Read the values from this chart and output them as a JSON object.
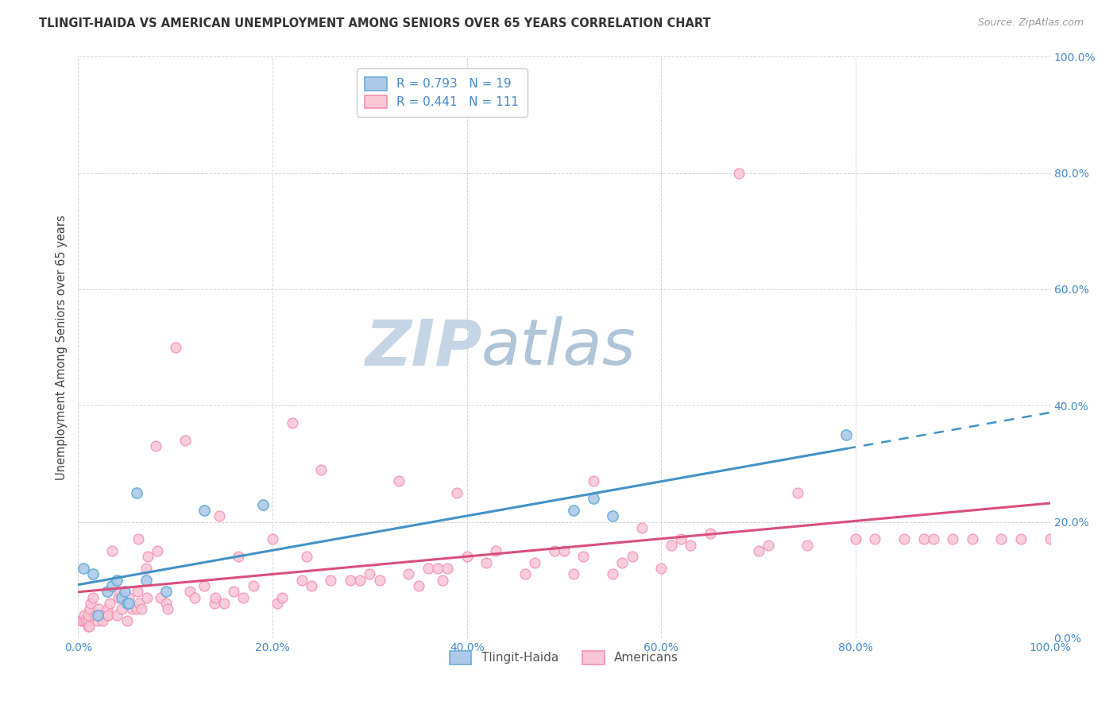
{
  "title": "TLINGIT-HAIDA VS AMERICAN UNEMPLOYMENT AMONG SENIORS OVER 65 YEARS CORRELATION CHART",
  "source": "Source: ZipAtlas.com",
  "ylabel": "Unemployment Among Seniors over 65 years",
  "tlingit_color": "#6baed6",
  "tlingit_face": "#aec9e8",
  "american_color": "#f48fb1",
  "american_face": "#f9c6d6",
  "trendline_tlingit_color": "#4292c6",
  "trendline_american_color": "#d94f7a",
  "watermark_zip_color": "#c8d8e8",
  "watermark_atlas_color": "#b8c8d8",
  "tlingit_x": [
    0.5,
    1.5,
    2.0,
    3.0,
    3.5,
    4.0,
    4.5,
    4.8,
    5.0,
    5.2,
    6.0,
    7.0,
    9.0,
    13.0,
    19.0,
    51.0,
    53.0,
    55.0,
    79.0
  ],
  "tlingit_y": [
    12.0,
    11.0,
    4.0,
    8.0,
    9.0,
    10.0,
    7.0,
    8.0,
    6.0,
    6.0,
    25.0,
    10.0,
    8.0,
    22.0,
    23.0,
    22.0,
    24.0,
    21.0,
    35.0
  ],
  "american_x": [
    0.3,
    0.5,
    0.6,
    0.8,
    1.0,
    1.0,
    1.0,
    1.1,
    1.2,
    1.3,
    1.5,
    1.8,
    2.0,
    2.0,
    2.1,
    2.2,
    2.5,
    3.0,
    3.0,
    3.1,
    3.2,
    3.5,
    4.0,
    4.1,
    4.2,
    4.5,
    5.0,
    5.1,
    5.2,
    5.5,
    6.0,
    6.1,
    6.2,
    6.3,
    6.5,
    7.0,
    7.1,
    7.2,
    8.0,
    8.1,
    8.5,
    9.0,
    9.2,
    10.0,
    11.0,
    11.5,
    12.0,
    13.0,
    14.0,
    14.1,
    14.5,
    15.0,
    16.0,
    16.5,
    17.0,
    18.0,
    20.0,
    20.5,
    21.0,
    22.0,
    23.0,
    23.5,
    24.0,
    25.0,
    26.0,
    28.0,
    29.0,
    30.0,
    31.0,
    33.0,
    34.0,
    35.0,
    36.0,
    37.0,
    37.5,
    38.0,
    39.0,
    40.0,
    42.0,
    43.0,
    46.0,
    47.0,
    49.0,
    50.0,
    51.0,
    52.0,
    53.0,
    55.0,
    56.0,
    57.0,
    58.0,
    60.0,
    61.0,
    62.0,
    63.0,
    65.0,
    68.0,
    70.0,
    71.0,
    74.0,
    75.0,
    80.0,
    82.0,
    85.0,
    87.0,
    88.0,
    90.0,
    92.0,
    95.0,
    97.0,
    100.0
  ],
  "american_y": [
    3.0,
    3.0,
    4.0,
    3.0,
    2.0,
    3.0,
    4.0,
    2.0,
    5.0,
    6.0,
    7.0,
    4.0,
    3.0,
    4.0,
    5.0,
    4.0,
    3.0,
    4.0,
    5.0,
    4.0,
    6.0,
    15.0,
    4.0,
    7.0,
    8.0,
    5.0,
    3.0,
    6.0,
    7.0,
    5.0,
    5.0,
    8.0,
    17.0,
    6.0,
    5.0,
    12.0,
    7.0,
    14.0,
    33.0,
    15.0,
    7.0,
    6.0,
    5.0,
    50.0,
    34.0,
    8.0,
    7.0,
    9.0,
    6.0,
    7.0,
    21.0,
    6.0,
    8.0,
    14.0,
    7.0,
    9.0,
    17.0,
    6.0,
    7.0,
    37.0,
    10.0,
    14.0,
    9.0,
    29.0,
    10.0,
    10.0,
    10.0,
    11.0,
    10.0,
    27.0,
    11.0,
    9.0,
    12.0,
    12.0,
    10.0,
    12.0,
    25.0,
    14.0,
    13.0,
    15.0,
    11.0,
    13.0,
    15.0,
    15.0,
    11.0,
    14.0,
    27.0,
    11.0,
    13.0,
    14.0,
    19.0,
    12.0,
    16.0,
    17.0,
    16.0,
    18.0,
    80.0,
    15.0,
    16.0,
    25.0,
    16.0,
    17.0,
    17.0,
    17.0,
    17.0,
    17.0,
    17.0,
    17.0,
    17.0,
    17.0,
    17.0
  ],
  "xlim": [
    0,
    100
  ],
  "ylim": [
    0,
    100
  ],
  "xticks": [
    0,
    20,
    40,
    60,
    80,
    100
  ],
  "xticklabels": [
    "0.0%",
    "20.0%",
    "40.0%",
    "60.0%",
    "80.0%",
    "100.0%"
  ],
  "yticks": [
    0,
    20,
    40,
    60,
    80,
    100
  ],
  "yticklabels": [
    "0.0%",
    "20.0%",
    "40.0%",
    "60.0%",
    "80.0%",
    "100.0%"
  ]
}
